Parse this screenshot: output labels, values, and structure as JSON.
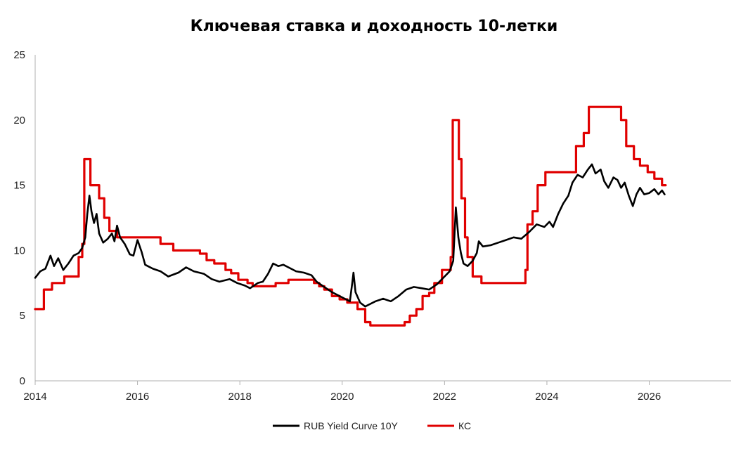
{
  "chart_data": {
    "type": "line",
    "title": "Ключевая ставка и доходность 10-летки",
    "xlabel": "",
    "ylabel": "",
    "xlim": [
      2014,
      2027.6
    ],
    "ylim": [
      0,
      25
    ],
    "x_ticks": [
      2014,
      2016,
      2018,
      2020,
      2022,
      2024,
      2026
    ],
    "y_ticks": [
      0,
      5,
      10,
      15,
      20,
      25
    ],
    "grid": false,
    "legend_position": "bottom",
    "series": [
      {
        "name": "RUB Yield Curve 10Y",
        "color": "#000000",
        "style": "line",
        "points": [
          [
            2014.0,
            7.9
          ],
          [
            2014.1,
            8.4
          ],
          [
            2014.2,
            8.6
          ],
          [
            2014.3,
            9.6
          ],
          [
            2014.37,
            8.8
          ],
          [
            2014.45,
            9.4
          ],
          [
            2014.55,
            8.5
          ],
          [
            2014.65,
            9.0
          ],
          [
            2014.75,
            9.6
          ],
          [
            2014.85,
            9.8
          ],
          [
            2014.92,
            10.2
          ],
          [
            2014.98,
            11.0
          ],
          [
            2015.02,
            12.8
          ],
          [
            2015.06,
            14.2
          ],
          [
            2015.1,
            13.0
          ],
          [
            2015.15,
            12.1
          ],
          [
            2015.2,
            12.8
          ],
          [
            2015.25,
            11.3
          ],
          [
            2015.33,
            10.6
          ],
          [
            2015.42,
            10.9
          ],
          [
            2015.5,
            11.3
          ],
          [
            2015.55,
            10.7
          ],
          [
            2015.6,
            11.9
          ],
          [
            2015.66,
            11.0
          ],
          [
            2015.75,
            10.5
          ],
          [
            2015.85,
            9.7
          ],
          [
            2015.92,
            9.6
          ],
          [
            2016.0,
            10.8
          ],
          [
            2016.08,
            9.9
          ],
          [
            2016.15,
            8.9
          ],
          [
            2016.3,
            8.6
          ],
          [
            2016.45,
            8.4
          ],
          [
            2016.6,
            8.0
          ],
          [
            2016.8,
            8.3
          ],
          [
            2016.95,
            8.7
          ],
          [
            2017.1,
            8.4
          ],
          [
            2017.3,
            8.2
          ],
          [
            2017.45,
            7.8
          ],
          [
            2017.6,
            7.6
          ],
          [
            2017.8,
            7.8
          ],
          [
            2017.95,
            7.5
          ],
          [
            2018.1,
            7.3
          ],
          [
            2018.2,
            7.1
          ],
          [
            2018.35,
            7.5
          ],
          [
            2018.45,
            7.6
          ],
          [
            2018.55,
            8.2
          ],
          [
            2018.65,
            9.0
          ],
          [
            2018.75,
            8.8
          ],
          [
            2018.85,
            8.9
          ],
          [
            2018.95,
            8.7
          ],
          [
            2019.1,
            8.4
          ],
          [
            2019.25,
            8.3
          ],
          [
            2019.4,
            8.1
          ],
          [
            2019.5,
            7.6
          ],
          [
            2019.65,
            7.2
          ],
          [
            2019.8,
            6.8
          ],
          [
            2019.95,
            6.5
          ],
          [
            2020.05,
            6.3
          ],
          [
            2020.15,
            6.1
          ],
          [
            2020.2,
            7.6
          ],
          [
            2020.22,
            8.3
          ],
          [
            2020.26,
            6.8
          ],
          [
            2020.35,
            6.0
          ],
          [
            2020.45,
            5.7
          ],
          [
            2020.55,
            5.9
          ],
          [
            2020.65,
            6.1
          ],
          [
            2020.8,
            6.3
          ],
          [
            2020.95,
            6.1
          ],
          [
            2021.1,
            6.5
          ],
          [
            2021.25,
            7.0
          ],
          [
            2021.4,
            7.2
          ],
          [
            2021.55,
            7.1
          ],
          [
            2021.7,
            7.0
          ],
          [
            2021.85,
            7.4
          ],
          [
            2022.0,
            8.0
          ],
          [
            2022.1,
            8.4
          ],
          [
            2022.17,
            9.2
          ],
          [
            2022.22,
            13.3
          ],
          [
            2022.27,
            11.0
          ],
          [
            2022.32,
            9.8
          ],
          [
            2022.37,
            9.0
          ],
          [
            2022.45,
            8.8
          ],
          [
            2022.55,
            9.2
          ],
          [
            2022.63,
            9.8
          ],
          [
            2022.67,
            10.7
          ],
          [
            2022.75,
            10.3
          ],
          [
            2022.9,
            10.4
          ],
          [
            2023.05,
            10.6
          ],
          [
            2023.2,
            10.8
          ],
          [
            2023.35,
            11.0
          ],
          [
            2023.5,
            10.9
          ],
          [
            2023.65,
            11.4
          ],
          [
            2023.8,
            12.0
          ],
          [
            2023.95,
            11.8
          ],
          [
            2024.05,
            12.2
          ],
          [
            2024.12,
            11.8
          ],
          [
            2024.22,
            12.8
          ],
          [
            2024.32,
            13.6
          ],
          [
            2024.42,
            14.2
          ],
          [
            2024.5,
            15.2
          ],
          [
            2024.6,
            15.8
          ],
          [
            2024.7,
            15.6
          ],
          [
            2024.8,
            16.2
          ],
          [
            2024.88,
            16.6
          ],
          [
            2024.95,
            15.9
          ],
          [
            2025.05,
            16.2
          ],
          [
            2025.12,
            15.3
          ],
          [
            2025.2,
            14.8
          ],
          [
            2025.3,
            15.6
          ],
          [
            2025.38,
            15.4
          ],
          [
            2025.45,
            14.8
          ],
          [
            2025.52,
            15.2
          ],
          [
            2025.6,
            14.2
          ],
          [
            2025.68,
            13.4
          ],
          [
            2025.75,
            14.3
          ],
          [
            2025.82,
            14.8
          ],
          [
            2025.9,
            14.3
          ],
          [
            2026.0,
            14.4
          ],
          [
            2026.1,
            14.7
          ],
          [
            2026.18,
            14.3
          ],
          [
            2026.25,
            14.6
          ],
          [
            2026.3,
            14.3
          ]
        ]
      },
      {
        "name": "КС",
        "color": "#e00000",
        "style": "step",
        "points": [
          [
            2014.0,
            5.5
          ],
          [
            2014.17,
            7.0
          ],
          [
            2014.33,
            7.5
          ],
          [
            2014.57,
            8.0
          ],
          [
            2014.85,
            9.5
          ],
          [
            2014.92,
            10.5
          ],
          [
            2014.96,
            17.0
          ],
          [
            2015.08,
            15.0
          ],
          [
            2015.25,
            14.0
          ],
          [
            2015.35,
            12.5
          ],
          [
            2015.45,
            11.5
          ],
          [
            2015.6,
            11.0
          ],
          [
            2016.45,
            10.5
          ],
          [
            2016.7,
            10.0
          ],
          [
            2017.22,
            9.75
          ],
          [
            2017.35,
            9.25
          ],
          [
            2017.5,
            9.0
          ],
          [
            2017.72,
            8.5
          ],
          [
            2017.83,
            8.25
          ],
          [
            2017.97,
            7.75
          ],
          [
            2018.15,
            7.5
          ],
          [
            2018.25,
            7.25
          ],
          [
            2018.7,
            7.5
          ],
          [
            2018.95,
            7.75
          ],
          [
            2019.45,
            7.5
          ],
          [
            2019.55,
            7.25
          ],
          [
            2019.65,
            7.0
          ],
          [
            2019.8,
            6.5
          ],
          [
            2019.95,
            6.25
          ],
          [
            2020.1,
            6.0
          ],
          [
            2020.3,
            5.5
          ],
          [
            2020.45,
            4.5
          ],
          [
            2020.55,
            4.25
          ],
          [
            2021.22,
            4.5
          ],
          [
            2021.32,
            5.0
          ],
          [
            2021.45,
            5.5
          ],
          [
            2021.57,
            6.5
          ],
          [
            2021.7,
            6.75
          ],
          [
            2021.8,
            7.5
          ],
          [
            2021.95,
            8.5
          ],
          [
            2022.12,
            9.5
          ],
          [
            2022.16,
            20.0
          ],
          [
            2022.28,
            17.0
          ],
          [
            2022.33,
            14.0
          ],
          [
            2022.4,
            11.0
          ],
          [
            2022.45,
            9.5
          ],
          [
            2022.55,
            8.0
          ],
          [
            2022.72,
            7.5
          ],
          [
            2023.58,
            8.5
          ],
          [
            2023.62,
            12.0
          ],
          [
            2023.72,
            13.0
          ],
          [
            2023.82,
            15.0
          ],
          [
            2023.97,
            16.0
          ],
          [
            2024.57,
            18.0
          ],
          [
            2024.72,
            19.0
          ],
          [
            2024.82,
            21.0
          ],
          [
            2025.45,
            20.0
          ],
          [
            2025.55,
            18.0
          ],
          [
            2025.7,
            17.0
          ],
          [
            2025.82,
            16.5
          ],
          [
            2025.97,
            16.0
          ],
          [
            2026.1,
            15.5
          ],
          [
            2026.25,
            15.0
          ],
          [
            2026.32,
            15.0
          ]
        ]
      }
    ]
  }
}
